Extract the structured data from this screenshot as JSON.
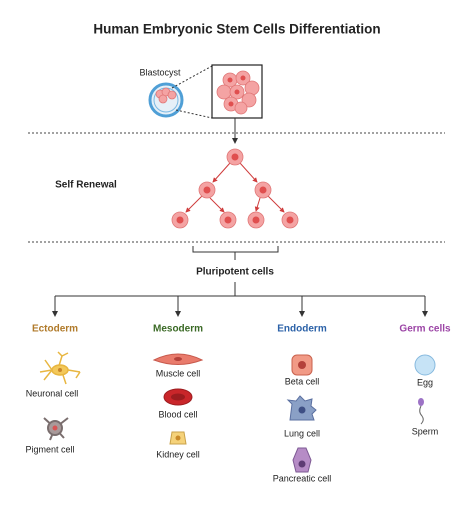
{
  "title": "Human Embryonic Stem Cells Differentiation",
  "source_label": "Blastocyst",
  "stage_label": "Self Renewal",
  "pluripotent_label": "Pluripotent cells",
  "groups": [
    {
      "name": "Ectoderm",
      "cells": [
        "Neuronal cell",
        "Pigment cell"
      ]
    },
    {
      "name": "Mesoderm",
      "cells": [
        "Muscle cell",
        "Blood cell",
        "Kidney cell"
      ]
    },
    {
      "name": "Endoderm",
      "cells": [
        "Beta cell",
        "Lung cell",
        "Pancreatic cell"
      ]
    },
    {
      "name": "Germ cells",
      "cells": [
        "Egg",
        "Sperm"
      ]
    }
  ]
}
